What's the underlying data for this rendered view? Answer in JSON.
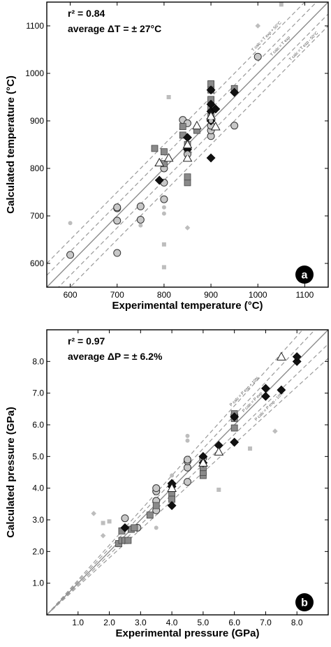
{
  "chart_data": [
    {
      "type": "scatter",
      "panel_label": "a",
      "xlabel": "Experimental temperature (°C)",
      "ylabel": "Calculated temperature (°C)",
      "xlim": [
        550,
        1150
      ],
      "ylim": [
        550,
        1150
      ],
      "xticks": [
        600,
        700,
        800,
        900,
        1000,
        1100
      ],
      "yticks": [
        600,
        700,
        800,
        900,
        1000,
        1100
      ],
      "stats": {
        "r2_label": "r² = 0.84",
        "delta_label": "average ΔT = ± 27°C"
      },
      "reference_lines": [
        {
          "name": "T calc = T exp + 50°C",
          "offset": 50,
          "mode": "additive",
          "style": "dashed"
        },
        {
          "name": "",
          "offset": 25,
          "mode": "additive",
          "style": "dashed"
        },
        {
          "name": "T calc = T exp",
          "offset": 0,
          "mode": "additive",
          "style": "solid"
        },
        {
          "name": "",
          "offset": -25,
          "mode": "additive",
          "style": "dashed"
        },
        {
          "name": "T calc = T exp - 50°C",
          "offset": -50,
          "mode": "additive",
          "style": "dashed"
        }
      ],
      "series": [
        {
          "marker": "circle",
          "fill": "#c8c8c8",
          "points": [
            [
              600,
              618
            ],
            [
              700,
              622
            ],
            [
              700,
              690
            ],
            [
              700,
              716
            ],
            [
              700,
              718
            ],
            [
              750,
              692
            ],
            [
              750,
              720
            ],
            [
              800,
              735
            ],
            [
              800,
              770
            ],
            [
              800,
              800
            ],
            [
              840,
              902
            ],
            [
              850,
              830
            ],
            [
              850,
              895
            ],
            [
              900,
              868
            ],
            [
              900,
              880
            ],
            [
              900,
              890
            ],
            [
              950,
              890
            ],
            [
              1000,
              1035
            ]
          ]
        },
        {
          "marker": "square",
          "fill": "#8a8a8a",
          "points": [
            [
              780,
              842
            ],
            [
              800,
              835
            ],
            [
              800,
              810
            ],
            [
              840,
              870
            ],
            [
              840,
              888
            ],
            [
              850,
              770
            ],
            [
              850,
              782
            ],
            [
              850,
              850
            ],
            [
              850,
              840
            ],
            [
              870,
              880
            ],
            [
              900,
              978
            ],
            [
              900,
              965
            ],
            [
              900,
              945
            ],
            [
              900,
              925
            ],
            [
              900,
              915
            ],
            [
              950,
              968
            ]
          ]
        },
        {
          "marker": "diamond",
          "fill": "#111111",
          "points": [
            [
              790,
              775
            ],
            [
              850,
              840
            ],
            [
              850,
              865
            ],
            [
              900,
              965
            ],
            [
              900,
              935
            ],
            [
              900,
              920
            ],
            [
              900,
              905
            ],
            [
              900,
              900
            ],
            [
              900,
              822
            ],
            [
              910,
              925
            ],
            [
              950,
              960
            ]
          ]
        },
        {
          "marker": "triangle",
          "fill": "#ffffff",
          "points": [
            [
              790,
              812
            ],
            [
              810,
              822
            ],
            [
              850,
              850
            ],
            [
              850,
              822
            ],
            [
              870,
              890
            ],
            [
              900,
              910
            ],
            [
              910,
              888
            ]
          ]
        },
        {
          "marker": "small-circle",
          "fill": "#bdbdbd",
          "points": [
            [
              600,
              685
            ],
            [
              750,
              680
            ],
            [
              800,
              718
            ],
            [
              800,
              705
            ],
            [
              850,
              832
            ],
            [
              900,
              900
            ]
          ]
        },
        {
          "marker": "small-square",
          "fill": "#bdbdbd",
          "points": [
            [
              800,
              640
            ],
            [
              800,
              592
            ],
            [
              810,
              950
            ],
            [
              1050,
              1145
            ]
          ]
        },
        {
          "marker": "small-diamond",
          "fill": "#bdbdbd",
          "points": [
            [
              850,
              675
            ],
            [
              1000,
              1100
            ]
          ]
        }
      ]
    },
    {
      "type": "scatter",
      "panel_label": "b",
      "xlabel": "Experimental pressure (GPa)",
      "ylabel": "Calculated pressure (GPa)",
      "xlim": [
        0,
        9
      ],
      "ylim": [
        0,
        9
      ],
      "xticks": [
        1.0,
        2.0,
        3.0,
        4.0,
        5.0,
        6.0,
        7.0,
        8.0
      ],
      "yticks": [
        1.0,
        2.0,
        3.0,
        4.0,
        5.0,
        6.0,
        7.0,
        8.0
      ],
      "tick_format": "fixed-1",
      "stats": {
        "r2_label": "r² = 0.97",
        "delta_label": "average ΔP = ± 6.2%"
      },
      "reference_lines": [
        {
          "name": "P calc = P exp + 10%",
          "offset": 0.1,
          "mode": "relative",
          "style": "dashed"
        },
        {
          "name": "",
          "offset": 0.05,
          "mode": "relative",
          "style": "dashed"
        },
        {
          "name": "P calc = P exp",
          "offset": 0,
          "mode": "relative",
          "style": "solid"
        },
        {
          "name": "",
          "offset": -0.05,
          "mode": "relative",
          "style": "dashed"
        },
        {
          "name": "P calc = P exp - 10%",
          "offset": -0.1,
          "mode": "relative",
          "style": "dashed"
        }
      ],
      "series": [
        {
          "marker": "circle",
          "fill": "#c8c8c8",
          "points": [
            [
              2.5,
              3.05
            ],
            [
              2.9,
              2.75
            ],
            [
              3.5,
              3.3
            ],
            [
              3.5,
              3.6
            ],
            [
              3.5,
              3.9
            ],
            [
              3.5,
              4.0
            ],
            [
              4.0,
              4.1
            ],
            [
              4.5,
              4.2
            ],
            [
              4.5,
              4.65
            ],
            [
              4.5,
              4.85
            ],
            [
              4.5,
              4.9
            ],
            [
              5.0,
              4.95
            ],
            [
              6.0,
              6.3
            ]
          ]
        },
        {
          "marker": "square",
          "fill": "#8a8a8a",
          "points": [
            [
              2.3,
              2.25
            ],
            [
              2.4,
              2.35
            ],
            [
              2.5,
              2.35
            ],
            [
              2.6,
              2.35
            ],
            [
              2.4,
              2.65
            ],
            [
              2.7,
              2.7
            ],
            [
              2.8,
              2.75
            ],
            [
              3.3,
              3.15
            ],
            [
              3.5,
              3.45
            ],
            [
              4.0,
              3.65
            ],
            [
              4.0,
              3.85
            ],
            [
              5.0,
              4.4
            ],
            [
              5.0,
              4.5
            ],
            [
              5.0,
              4.65
            ],
            [
              6.0,
              5.9
            ],
            [
              6.0,
              6.2
            ],
            [
              6.0,
              6.35
            ]
          ]
        },
        {
          "marker": "diamond",
          "fill": "#111111",
          "points": [
            [
              2.5,
              2.75
            ],
            [
              4.0,
              3.45
            ],
            [
              4.0,
              4.05
            ],
            [
              4.0,
              4.15
            ],
            [
              5.0,
              4.8
            ],
            [
              5.0,
              5.0
            ],
            [
              5.5,
              5.35
            ],
            [
              6.0,
              5.45
            ],
            [
              6.0,
              6.25
            ],
            [
              7.0,
              6.9
            ],
            [
              7.0,
              7.15
            ],
            [
              7.5,
              7.1
            ],
            [
              8.0,
              8.0
            ],
            [
              8.0,
              8.15
            ]
          ]
        },
        {
          "marker": "triangle",
          "fill": "#ffffff",
          "points": [
            [
              4.0,
              4.0
            ],
            [
              5.0,
              4.8
            ],
            [
              5.5,
              5.15
            ],
            [
              7.5,
              8.15
            ]
          ]
        },
        {
          "marker": "small-circle",
          "fill": "#bdbdbd",
          "points": [
            [
              3.5,
              2.75
            ],
            [
              4.0,
              4.4
            ],
            [
              4.5,
              5.5
            ],
            [
              4.5,
              5.65
            ]
          ]
        },
        {
          "marker": "small-square",
          "fill": "#bdbdbd",
          "points": [
            [
              1.8,
              2.9
            ],
            [
              2.0,
              2.95
            ],
            [
              5.5,
              3.95
            ],
            [
              6.5,
              5.25
            ]
          ]
        },
        {
          "marker": "small-diamond",
          "fill": "#bdbdbd",
          "points": [
            [
              1.5,
              3.2
            ],
            [
              1.8,
              2.5
            ],
            [
              7.3,
              5.8
            ]
          ]
        }
      ]
    }
  ]
}
